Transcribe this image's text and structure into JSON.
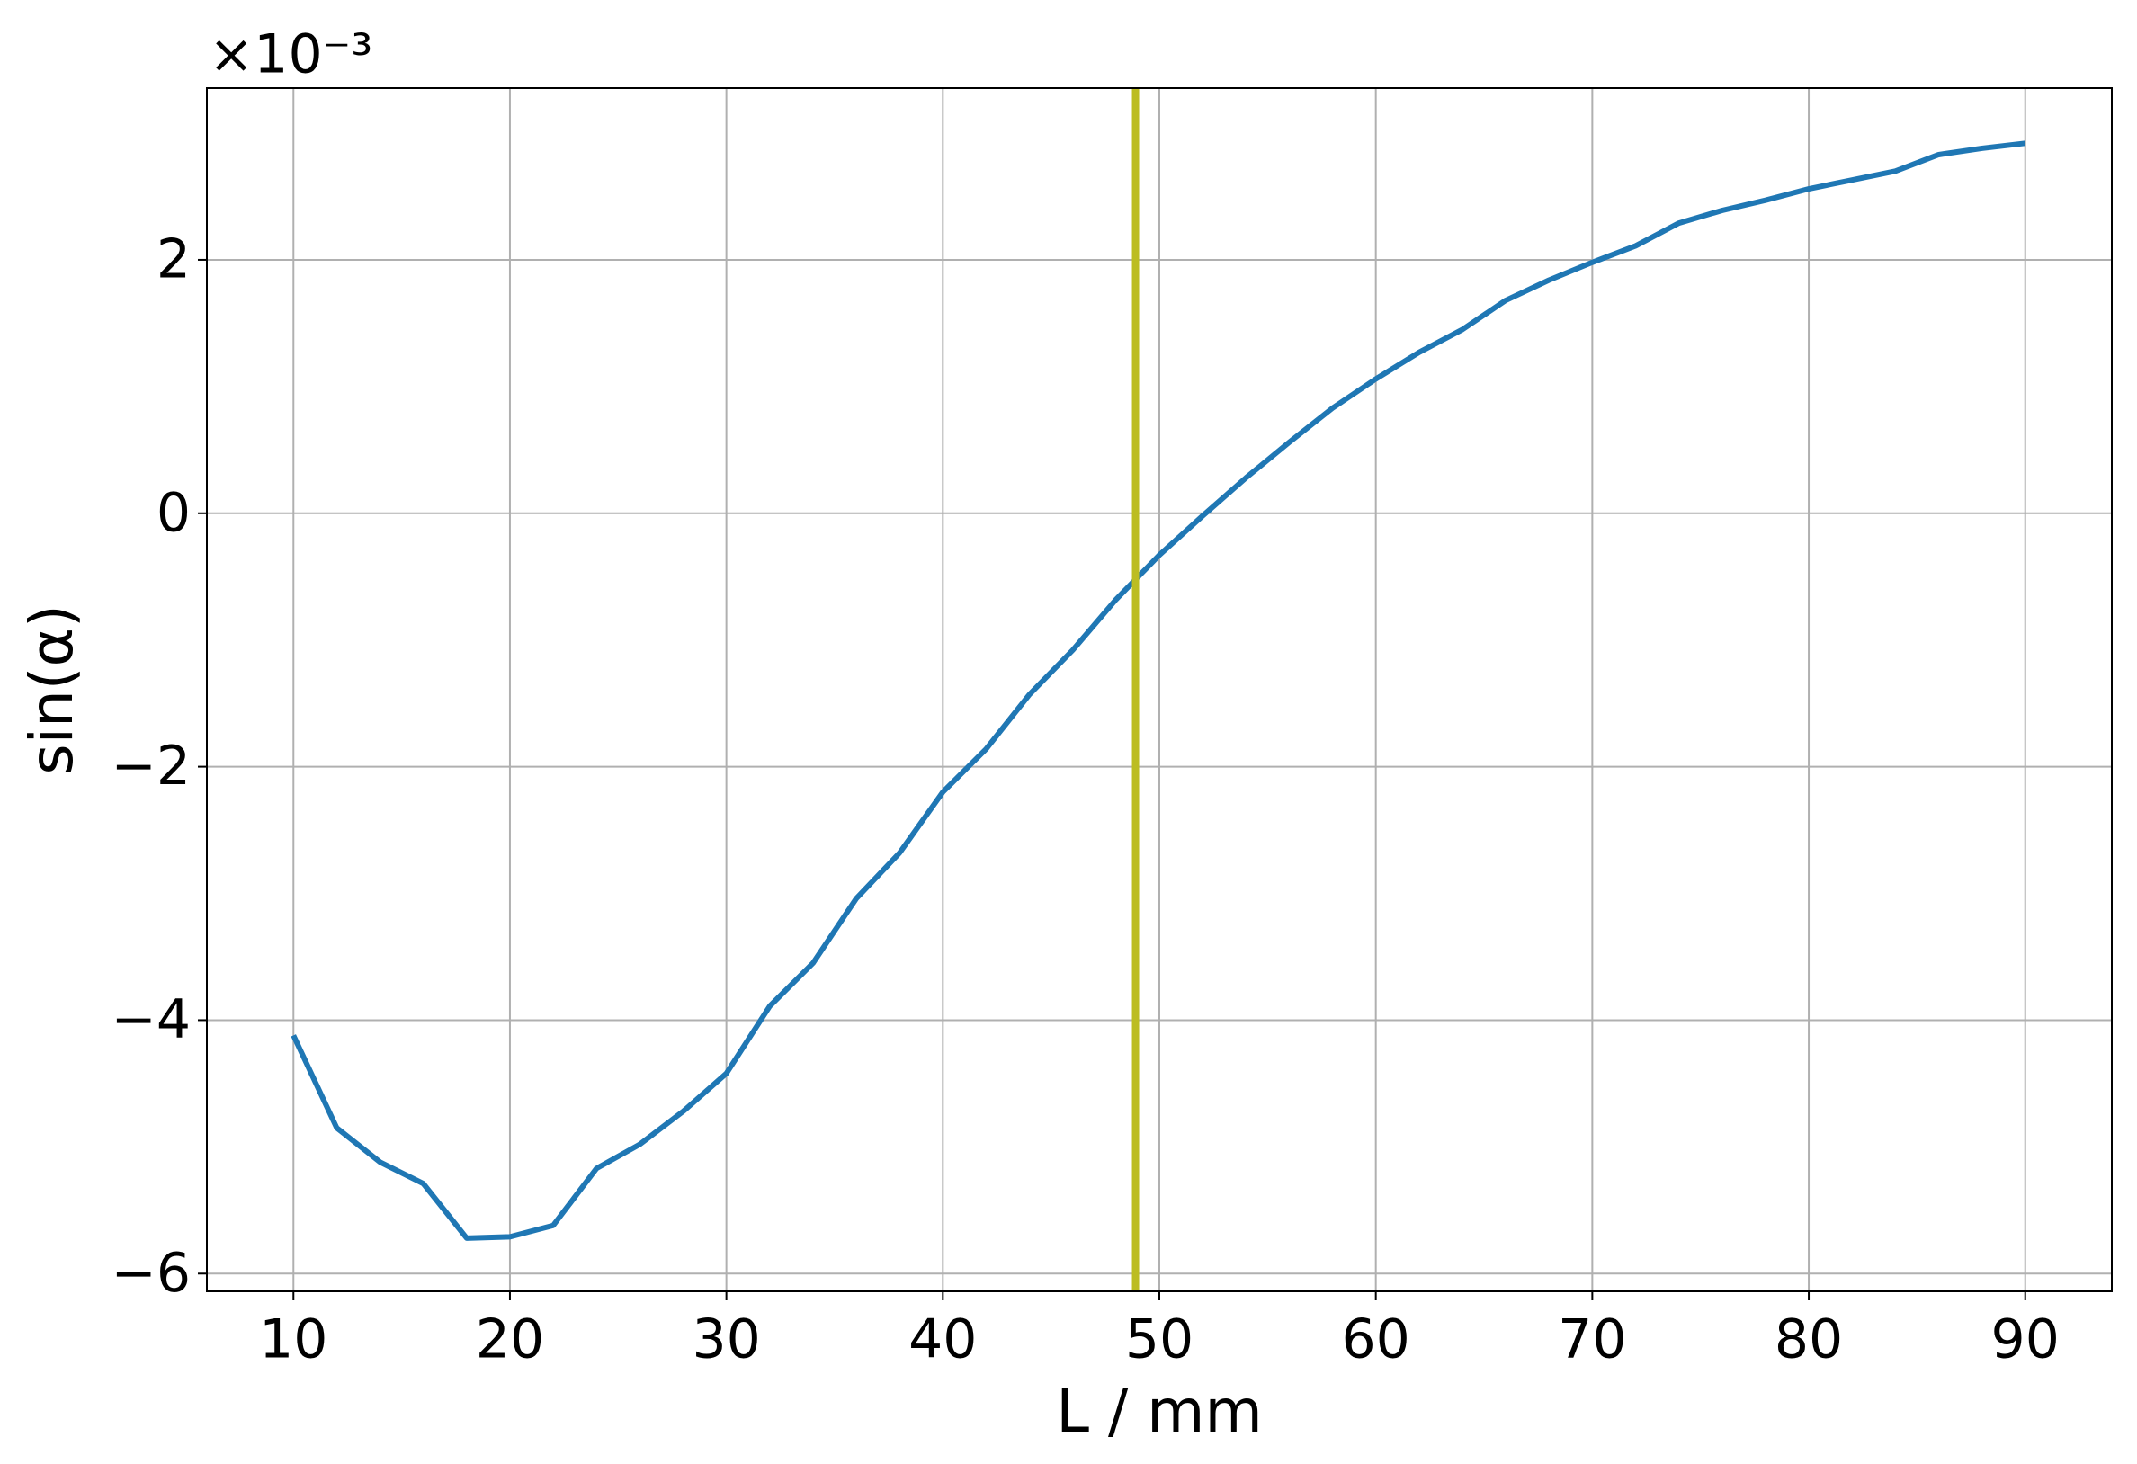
{
  "chart_data": {
    "type": "line",
    "x_label": "L / mm",
    "y_label": "sin(α)",
    "y_offset_label": "×10⁻³",
    "x": [
      10,
      12,
      14,
      16,
      18,
      20,
      22,
      24,
      26,
      28,
      30,
      32,
      34,
      36,
      38,
      40,
      42,
      44,
      46,
      48,
      50,
      52,
      54,
      56,
      58,
      60,
      62,
      64,
      66,
      68,
      70,
      72,
      74,
      76,
      78,
      80,
      82,
      84,
      86,
      88,
      90
    ],
    "series": [
      {
        "color": "#1f77b4",
        "values": [
          -4.12,
          -4.85,
          -5.12,
          -5.29,
          -5.72,
          -5.71,
          -5.62,
          -5.17,
          -4.98,
          -4.72,
          -4.42,
          -3.89,
          -3.55,
          -3.04,
          -2.68,
          -2.2,
          -1.86,
          -1.43,
          -1.08,
          -0.68,
          -0.33,
          -0.02,
          0.28,
          0.56,
          0.83,
          1.06,
          1.27,
          1.45,
          1.68,
          1.84,
          1.98,
          2.11,
          2.29,
          2.39,
          2.47,
          2.56,
          2.63,
          2.7,
          2.83,
          2.88,
          2.92
        ]
      }
    ],
    "vlines": [
      {
        "x": 48.9,
        "color": "#bcbd22"
      }
    ],
    "xlim": [
      6,
      94
    ],
    "xticks": [
      10,
      20,
      30,
      40,
      50,
      60,
      70,
      80,
      90
    ],
    "ylim": [
      -6.14,
      3.355
    ],
    "yticks": [
      {
        "value": -6,
        "label": "−6"
      },
      {
        "value": -4,
        "label": "−4"
      },
      {
        "value": -2,
        "label": "−2"
      },
      0,
      2
    ],
    "grid": true
  }
}
